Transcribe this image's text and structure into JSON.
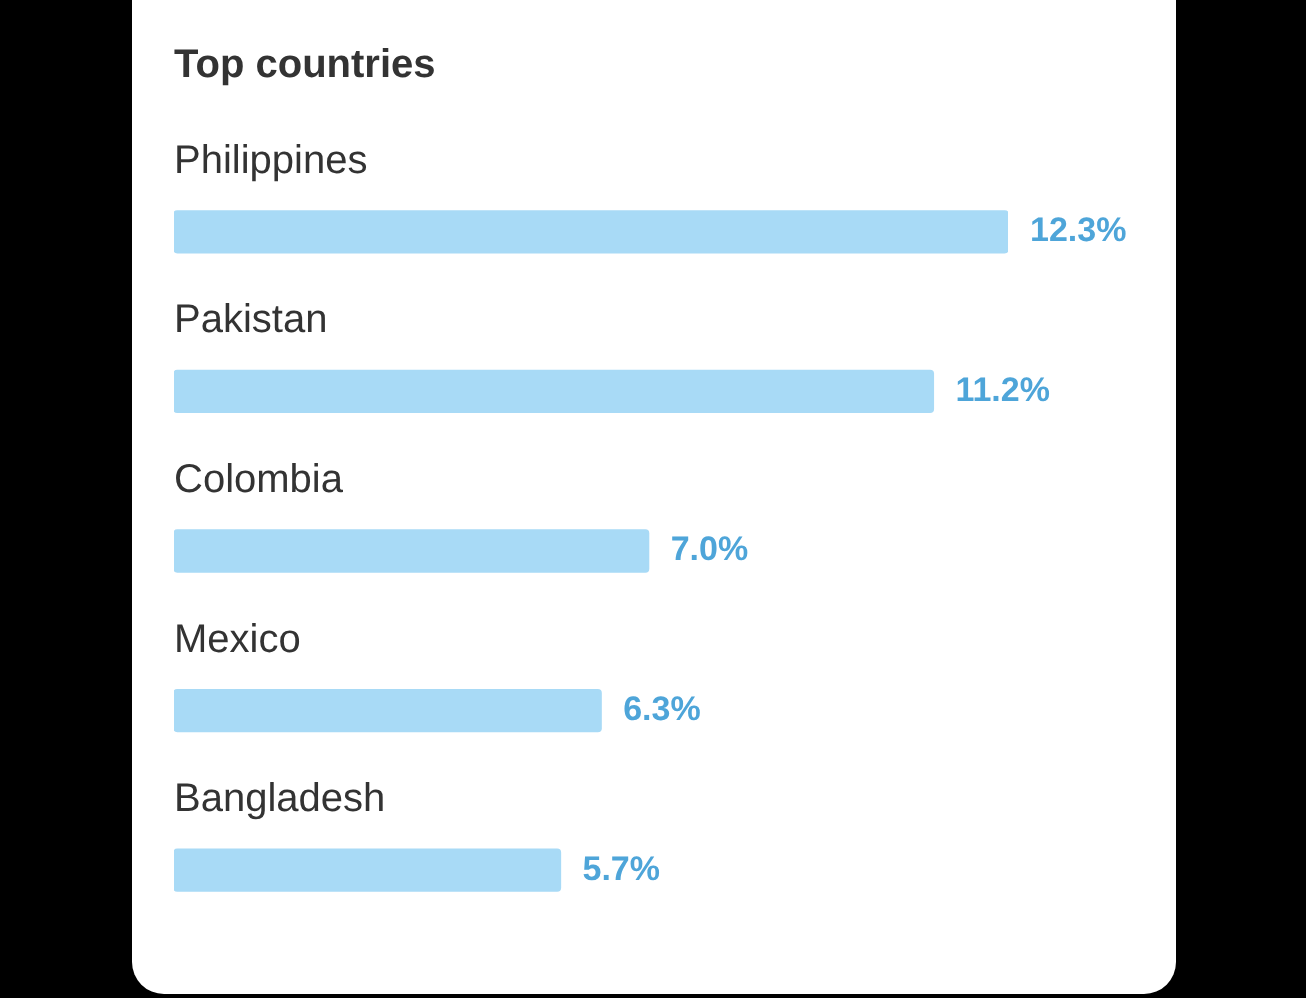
{
  "chart_data": {
    "type": "bar",
    "orientation": "horizontal",
    "title": "Top countries",
    "categories": [
      "Philippines",
      "Pakistan",
      "Colombia",
      "Mexico",
      "Bangladesh"
    ],
    "values": [
      12.3,
      11.2,
      7.0,
      6.3,
      5.7
    ],
    "value_labels": [
      "12.3%",
      "11.2%",
      "7.0%",
      "6.3%",
      "5.7%"
    ],
    "color": "#a8daf6"
  }
}
